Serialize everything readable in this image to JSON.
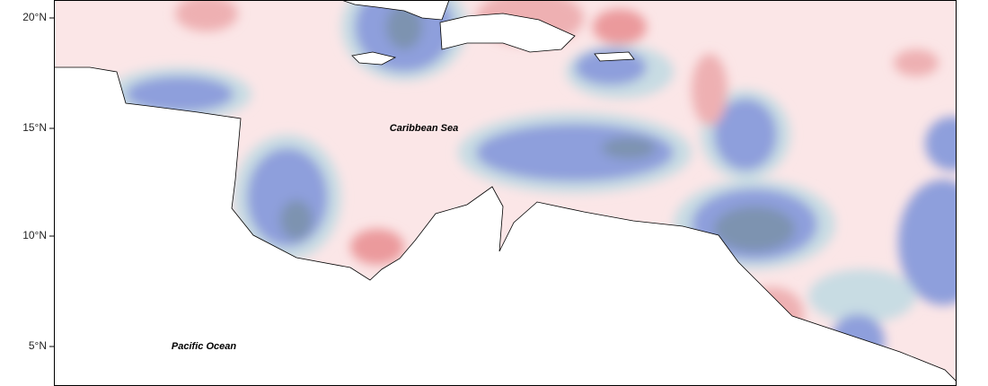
{
  "map": {
    "lat_labels": [
      "20°N",
      "15°N",
      "10°N",
      "5°N"
    ],
    "places": [
      "Caribbean Sea",
      "Pacific Ocean"
    ]
  }
}
